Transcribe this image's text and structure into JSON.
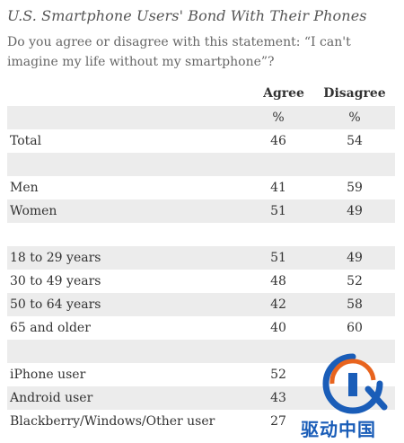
{
  "title": "U.S. Smartphone Users' Bond With Their Phones",
  "question": "Do you agree or disagree with this statement: “I can't imagine my life without my smartphone”?",
  "columns": {
    "agree": "Agree",
    "disagree": "Disagree"
  },
  "rows": [
    {
      "label": "",
      "agree": "%",
      "disagree": "%"
    },
    {
      "label": "Total",
      "agree": "46",
      "disagree": "54"
    },
    {
      "label": "",
      "agree": "",
      "disagree": ""
    },
    {
      "label": "Men",
      "agree": "41",
      "disagree": "59"
    },
    {
      "label": "Women",
      "agree": "51",
      "disagree": "49"
    },
    {
      "label": "",
      "agree": "",
      "disagree": ""
    },
    {
      "label": "18 to 29 years",
      "agree": "51",
      "disagree": "49"
    },
    {
      "label": "30 to 49 years",
      "agree": "48",
      "disagree": "52"
    },
    {
      "label": "50 to 64 years",
      "agree": "42",
      "disagree": "58"
    },
    {
      "label": "65 and older",
      "agree": "40",
      "disagree": "60"
    },
    {
      "label": "",
      "agree": "",
      "disagree": ""
    },
    {
      "label": "iPhone user",
      "agree": "52",
      "disagree": ""
    },
    {
      "label": "Android user",
      "agree": "43",
      "disagree": ""
    },
    {
      "label": "Blackberry/Windows/Other user",
      "agree": "27",
      "disagree": ""
    }
  ],
  "watermark": {
    "text": "驱动中国",
    "color": "#1a5db8",
    "accent": "#e8641e"
  }
}
